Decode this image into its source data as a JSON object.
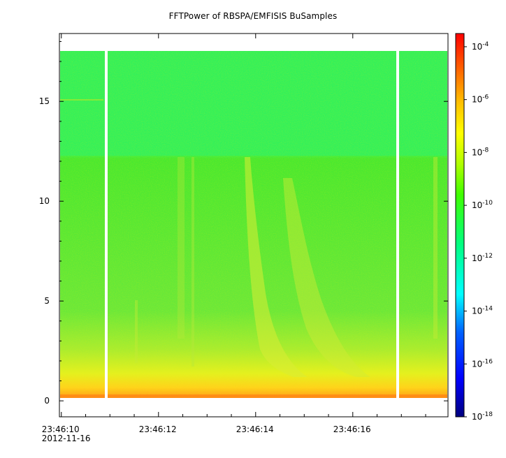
{
  "chart_data": {
    "type": "heatmap",
    "title": "FFTPower of RBSPA/EMFISIS  BuSamples",
    "xlabel": "",
    "ylabel": "",
    "x_ticks": [
      {
        "value": "23:46:10",
        "sub": "2012-11-16"
      },
      {
        "value": "23:46:12",
        "sub": ""
      },
      {
        "value": "23:46:14",
        "sub": ""
      },
      {
        "value": "23:46:16",
        "sub": ""
      }
    ],
    "x_range_seconds": [
      "23:46:09.96",
      "23:46:17.96"
    ],
    "y_ticks": [
      0,
      5,
      10,
      15
    ],
    "ylim": [
      -0.8,
      18.4
    ],
    "grid": false,
    "data_gaps": [
      "23:46:10.9",
      "23:46:16.9"
    ],
    "frequency_extent": [
      0,
      17.5
    ],
    "colorbar": {
      "scale": "log",
      "range": [
        "1e-18",
        "1e-3.5"
      ],
      "tick_labels": [
        {
          "base": "10",
          "exp": "-4"
        },
        {
          "base": "10",
          "exp": "-6"
        },
        {
          "base": "10",
          "exp": "-8"
        },
        {
          "base": "10",
          "exp": "-10"
        },
        {
          "base": "10",
          "exp": "-12"
        },
        {
          "base": "10",
          "exp": "-14"
        },
        {
          "base": "10",
          "exp": "-16"
        },
        {
          "base": "10",
          "exp": "-18"
        }
      ],
      "colors": [
        "#00008f",
        "#0000ff",
        "#00a0ff",
        "#00ffff",
        "#00ff80",
        "#40ff00",
        "#c0ff00",
        "#ffff00",
        "#ffc000",
        "#ff6000",
        "#ff0000"
      ]
    },
    "features": {
      "background_level_high_band": "1e-12",
      "background_level_mid_band": "1e-10",
      "low_freq_band_level": "1e-8",
      "chorus_rising_tone_level": "1e-9"
    }
  }
}
